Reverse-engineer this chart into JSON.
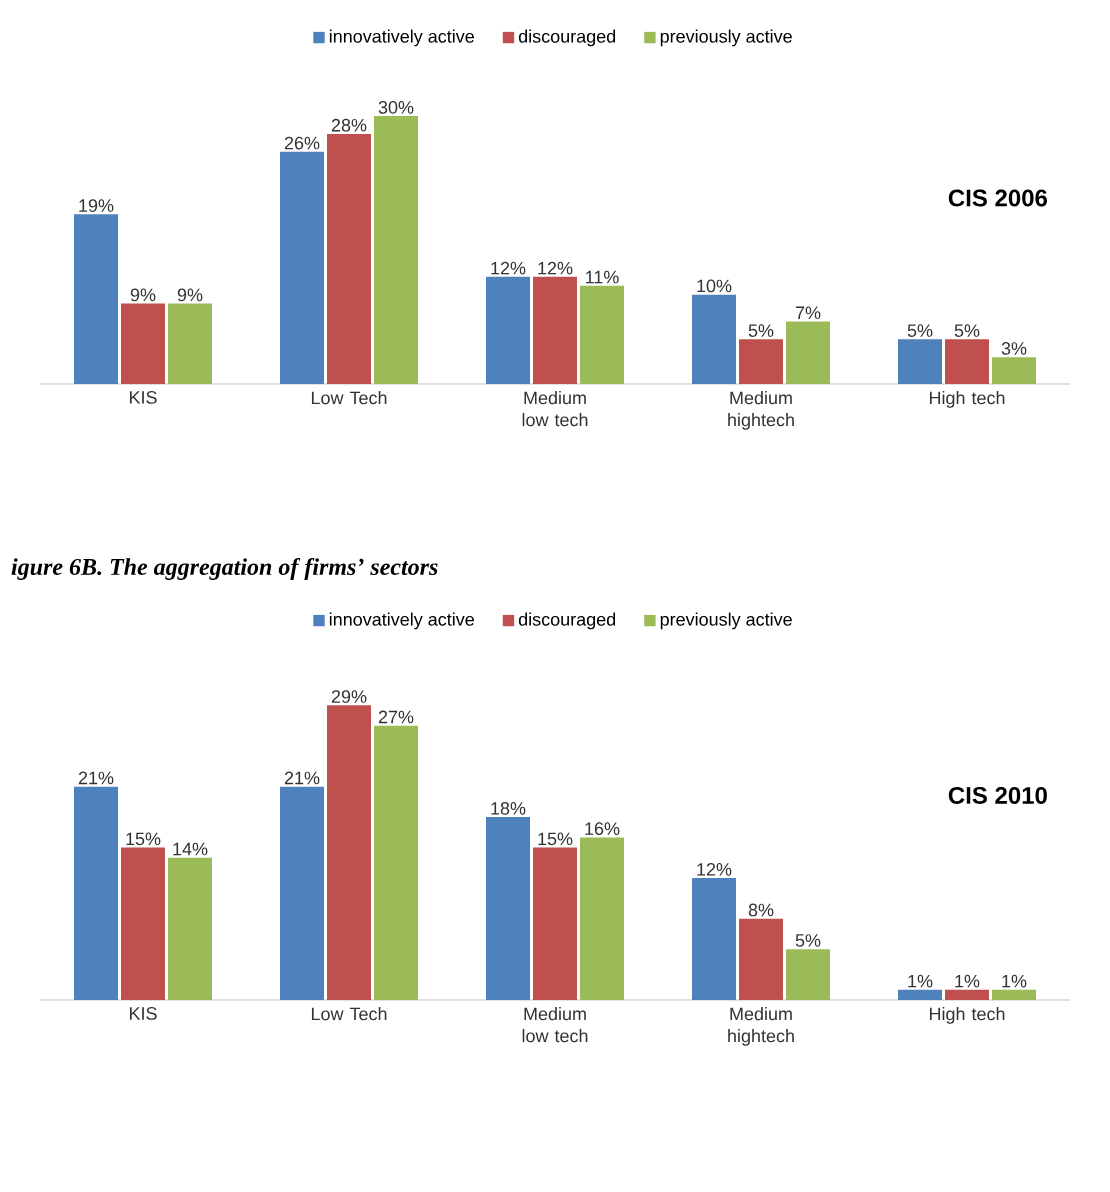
{
  "chart_data": [
    {
      "type": "bar",
      "categories": [
        "KIS",
        "Low Tech",
        "Medium low tech",
        "Medium hightech",
        "High tech"
      ],
      "legend": "top",
      "annotations": [
        "CIS 2006"
      ],
      "series": [
        {
          "name": "innovatively active",
          "color": "#4f81bd",
          "values": [
            19,
            26,
            12,
            10,
            5
          ],
          "value_labels": [
            "19%",
            "26%",
            "12%",
            "10%",
            "5%"
          ]
        },
        {
          "name": "discouraged",
          "color": "#c0504d",
          "values": [
            9,
            28,
            12,
            5,
            5
          ],
          "value_labels": [
            "9%",
            "28%",
            "12%",
            "5%",
            "5%"
          ]
        },
        {
          "name": "previously active",
          "color": "#9bbb59",
          "values": [
            9,
            30,
            11,
            7,
            3
          ],
          "value_labels": [
            "9%",
            "30%",
            "11%",
            "7%",
            "3%"
          ]
        }
      ]
    },
    {
      "type": "bar",
      "title": "igure 6B. The aggregation of firms’ sectors",
      "categories": [
        "KIS",
        "Low Tech",
        "Medium low tech",
        "Medium hightech",
        "High tech"
      ],
      "legend": "top",
      "annotations": [
        "CIS 2010"
      ],
      "series": [
        {
          "name": "innovatively active",
          "color": "#4f81bd",
          "values": [
            21,
            21,
            18,
            12,
            1
          ],
          "value_labels": [
            "21%",
            "21%",
            "18%",
            "12%",
            "1%"
          ]
        },
        {
          "name": "discouraged",
          "color": "#c0504d",
          "values": [
            15,
            29,
            15,
            8,
            1
          ],
          "value_labels": [
            "15%",
            "29%",
            "15%",
            "8%",
            "1%"
          ]
        },
        {
          "name": "previously active",
          "color": "#9bbb59",
          "values": [
            14,
            27,
            16,
            5,
            1
          ],
          "value_labels": [
            "14%",
            "27%",
            "16%",
            "5%",
            "1%"
          ]
        }
      ]
    }
  ]
}
